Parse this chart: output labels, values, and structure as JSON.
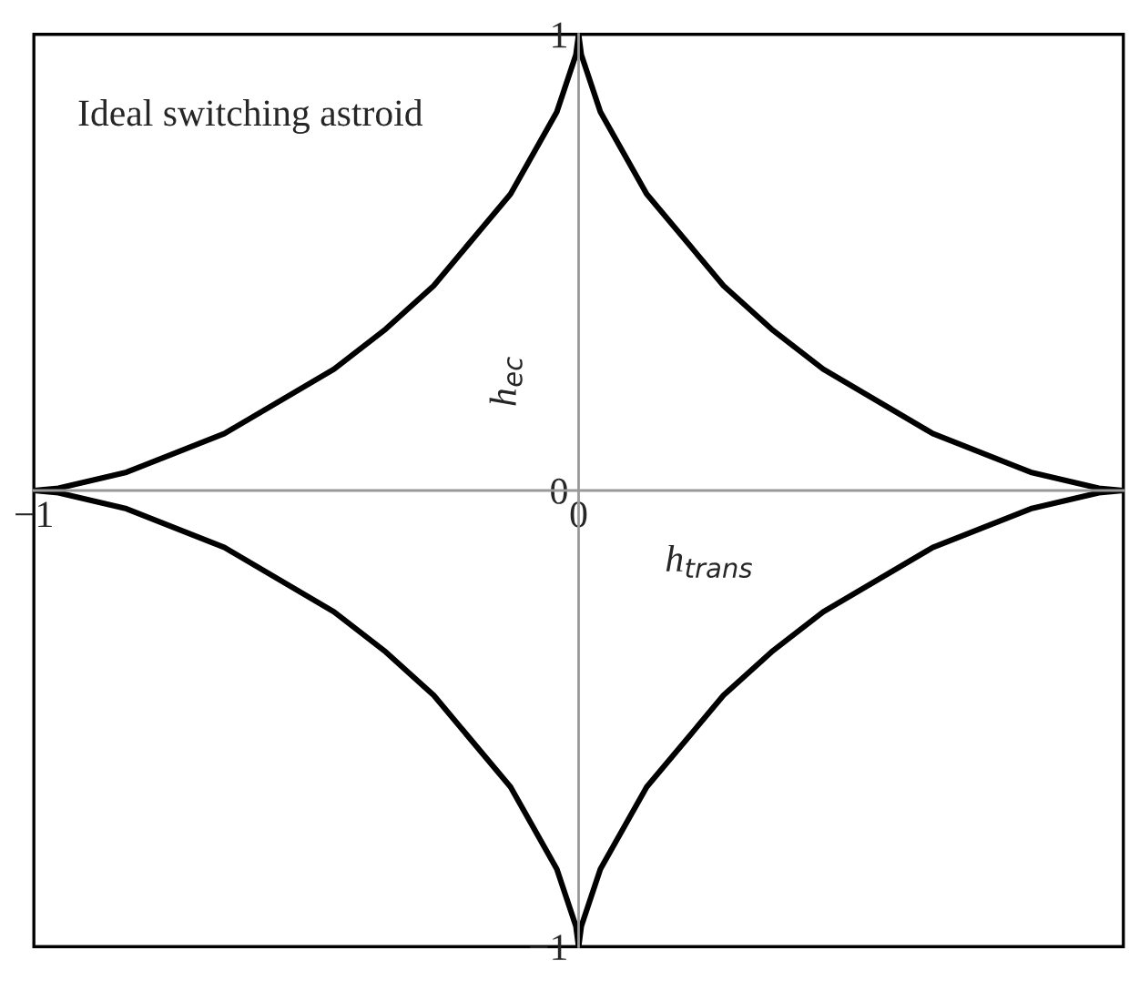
{
  "chart_data": {
    "type": "line",
    "series": [
      {
        "color": "#000000",
        "x": [
          0,
          0.005,
          0.04,
          0.125,
          0.266,
          0.354,
          0.449,
          0.65,
          0.83,
          0.955,
          1
        ],
        "values": [
          1,
          0.955,
          0.83,
          0.65,
          0.449,
          0.354,
          0.266,
          0.125,
          0.04,
          0.005,
          0
        ]
      },
      {
        "color": "#000000",
        "x": [
          -1,
          -0.955,
          -0.83,
          -0.65,
          -0.449,
          -0.354,
          -0.266,
          -0.125,
          -0.04,
          -0.005,
          0
        ],
        "values": [
          0,
          0.005,
          0.04,
          0.125,
          0.266,
          0.354,
          0.449,
          0.65,
          0.83,
          0.955,
          1
        ]
      },
      {
        "color": "#000000",
        "x": [
          -1,
          -0.955,
          -0.83,
          -0.65,
          -0.449,
          -0.354,
          -0.266,
          -0.125,
          -0.04,
          -0.005,
          0
        ],
        "values": [
          0,
          -0.005,
          -0.04,
          -0.125,
          -0.266,
          -0.354,
          -0.449,
          -0.65,
          -0.83,
          -0.955,
          -1
        ]
      },
      {
        "color": "#000000",
        "x": [
          0,
          0.005,
          0.04,
          0.125,
          0.266,
          0.354,
          0.449,
          0.65,
          0.83,
          0.955,
          1
        ],
        "values": [
          -1,
          -0.955,
          -0.83,
          -0.65,
          -0.449,
          -0.354,
          -0.266,
          -0.125,
          -0.04,
          -0.005,
          0
        ]
      }
    ],
    "xlabel": "h$_{trans}$",
    "ylabel": "h$_{ec}$",
    "annotations": [
      "Ideal switching astroid"
    ],
    "xlim": [
      -1,
      1
    ],
    "ylim": [
      -1,
      1
    ],
    "xticks": [
      {
        "value": -1,
        "label": "−1"
      },
      0
    ],
    "yticks": [
      {
        "value": -1,
        "label": "−1"
      },
      0,
      1
    ],
    "grid": false,
    "legend": false,
    "marker": "none",
    "line_style": "solid"
  }
}
